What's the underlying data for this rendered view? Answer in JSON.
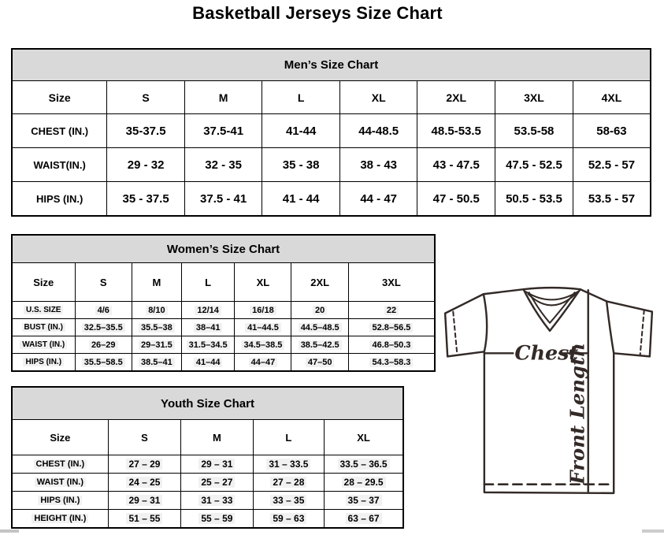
{
  "page": {
    "title": "Basketball Jerseys Size Chart"
  },
  "tables": [
    {
      "id": "mens",
      "title": "Men’s Size Chart",
      "columns": [
        "Size",
        "S",
        "M",
        "L",
        "XL",
        "2XL",
        "3XL",
        "4XL"
      ],
      "rows": [
        {
          "label": "CHEST (IN.)",
          "values": [
            "35-37.5",
            "37.5-41",
            "41-44",
            "44-48.5",
            "48.5-53.5",
            "53.5-58",
            "58-63"
          ]
        },
        {
          "label": "WAIST(IN.)",
          "values": [
            "29 - 32",
            "32 - 35",
            "35 - 38",
            "38 - 43",
            "43 - 47.5",
            "47.5 - 52.5",
            "52.5 - 57"
          ]
        },
        {
          "label": "HIPS (IN.)",
          "values": [
            "35 - 37.5",
            "37.5 - 41",
            "41 - 44",
            "44 - 47",
            "47 - 50.5",
            "50.5 - 53.5",
            "53.5 - 57"
          ]
        }
      ]
    },
    {
      "id": "womens",
      "title": "Women’s Size Chart",
      "columns": [
        "Size",
        "S",
        "M",
        "L",
        "XL",
        "2XL",
        "3XL"
      ],
      "rows": [
        {
          "label": "U.S. SIZE",
          "values": [
            "4/6",
            "8/10",
            "12/14",
            "16/18",
            "20",
            "22"
          ]
        },
        {
          "label": "BUST (IN.)",
          "values": [
            "32.5–35.5",
            "35.5–38",
            "38–41",
            "41–44.5",
            "44.5–48.5",
            "52.8–56.5"
          ]
        },
        {
          "label": "WAIST (IN.)",
          "values": [
            "26–29",
            "29–31.5",
            "31.5–34.5",
            "34.5–38.5",
            "38.5–42.5",
            "46.8–50.3"
          ]
        },
        {
          "label": "HIPS (IN.)",
          "values": [
            "35.5–58.5",
            "38.5–41",
            "41–44",
            "44–47",
            "47–50",
            "54.3–58.3"
          ]
        }
      ]
    },
    {
      "id": "youth",
      "title": "Youth Size Chart",
      "columns": [
        "Size",
        "S",
        "M",
        "L",
        "XL"
      ],
      "rows": [
        {
          "label": "CHEST (IN.)",
          "values": [
            "27 – 29",
            "29 – 31",
            "31 – 33.5",
            "33.5 – 36.5"
          ]
        },
        {
          "label": "WAIST (IN.)",
          "values": [
            "24 – 25",
            "25 – 27",
            "27 – 28",
            "28 – 29.5"
          ]
        },
        {
          "label": "HIPS (IN.)",
          "values": [
            "29 – 31",
            "31 – 33",
            "33 – 35",
            "35 – 37"
          ]
        },
        {
          "label": "HEIGHT (IN.)",
          "values": [
            "51 – 55",
            "55 – 59",
            "59 – 63",
            "63 – 67"
          ]
        }
      ]
    }
  ],
  "diagram": {
    "chest_label": "Chest",
    "front_length_label": "Front Length"
  },
  "colors": {
    "table_header_fill": "#d9d9d9",
    "table_border": "#000000",
    "jersey_stroke": "#332a27",
    "scrollbar_gray": "#c4c4c4"
  }
}
